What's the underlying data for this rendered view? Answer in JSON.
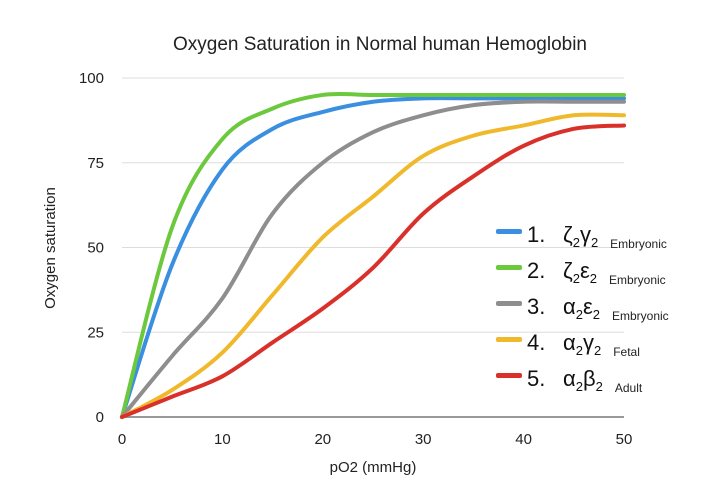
{
  "chart_data": {
    "type": "line",
    "title": "Oxygen Saturation in Normal human Hemoglobin",
    "xlabel": "pO2 (mmHg)",
    "ylabel": "Oxygen saturation",
    "xlim": [
      0,
      50
    ],
    "ylim": [
      0,
      100
    ],
    "xticks": [
      "0",
      "10",
      "20",
      "30",
      "40",
      "50"
    ],
    "yticks": [
      "0",
      "25",
      "50",
      "75",
      "100"
    ],
    "grid": "horizontal",
    "legend_position": "right",
    "x": [
      0,
      5,
      10,
      15,
      20,
      25,
      30,
      35,
      40,
      45,
      50
    ],
    "series": [
      {
        "num": "1.",
        "g1": "ζ",
        "s1": "2",
        "g2": "γ",
        "s2": "2",
        "desc": "Embryonic",
        "color": "#3b8fe0",
        "values": [
          0,
          45,
          73,
          85,
          90,
          93,
          94,
          94,
          94,
          94,
          94
        ]
      },
      {
        "num": "2.",
        "g1": "ζ",
        "s1": "2",
        "g2": "ε",
        "s2": "2",
        "desc": "Embryonic",
        "color": "#6cc83c",
        "values": [
          0,
          56,
          82,
          91,
          95,
          95,
          95,
          95,
          95,
          95,
          95
        ]
      },
      {
        "num": "3.",
        "g1": "α",
        "s1": "2",
        "g2": "ε",
        "s2": "2",
        "desc": "Embryonic",
        "color": "#8e8e8e",
        "values": [
          0,
          18,
          35,
          60,
          75,
          84,
          89,
          92,
          93,
          93,
          93
        ]
      },
      {
        "num": "4.",
        "g1": "α",
        "s1": "2",
        "g2": "γ",
        "s2": "2",
        "desc": "Fetal",
        "color": "#f0b92c",
        "values": [
          0,
          8,
          19,
          36,
          53,
          65,
          77,
          83,
          86,
          89,
          89
        ]
      },
      {
        "num": "5.",
        "g1": "α",
        "s1": "2",
        "g2": "β",
        "s2": "2",
        "desc": "Adult",
        "color": "#d9302a",
        "values": [
          0,
          6,
          12,
          22,
          32,
          44,
          60,
          71,
          80,
          85,
          86
        ]
      }
    ]
  }
}
